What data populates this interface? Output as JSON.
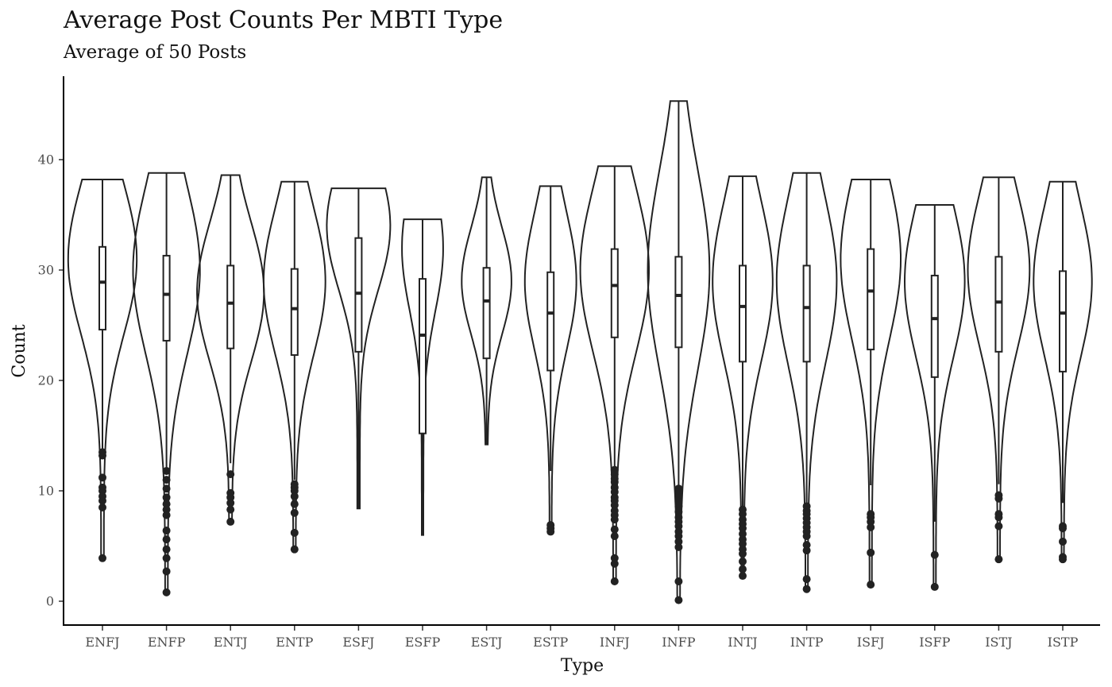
{
  "chart_data": {
    "type": "violin",
    "title": "Average Post Counts Per MBTI Type",
    "subtitle": "Average of 50 Posts",
    "xlabel": "Type",
    "ylabel": "Count",
    "ylim": [
      -2,
      47
    ],
    "y_ticks": [
      0,
      10,
      20,
      30,
      40
    ],
    "grid": false,
    "categories": [
      "ENFJ",
      "ENFP",
      "ENTJ",
      "ENTP",
      "ESFJ",
      "ESFP",
      "ESTJ",
      "ESTP",
      "INFJ",
      "INFP",
      "INTJ",
      "INTP",
      "ISFJ",
      "ISFP",
      "ISTJ",
      "ISTP"
    ],
    "groups": [
      {
        "type": "ENFJ",
        "min": 3.9,
        "max": 38.2,
        "q1": 24.6,
        "median": 28.9,
        "q3": 32.1,
        "whisker_low": 13.3,
        "whisker_high": 38.2,
        "peak": 31,
        "width": 0.8,
        "outliers": [
          13.5,
          13.2,
          11.2,
          10.3,
          10.0,
          9.5,
          9.1,
          8.5,
          3.9
        ]
      },
      {
        "type": "ENFP",
        "min": 0.8,
        "max": 38.8,
        "q1": 23.6,
        "median": 27.8,
        "q3": 31.3,
        "whisker_low": 12.0,
        "whisker_high": 38.8,
        "peak": 30,
        "width": 0.78,
        "outliers": [
          11.8,
          11.0,
          10.2,
          9.4,
          8.8,
          8.3,
          7.8,
          6.4,
          5.6,
          4.7,
          3.9,
          2.7,
          0.8
        ]
      },
      {
        "type": "ENTJ",
        "min": 7.2,
        "max": 38.6,
        "q1": 22.9,
        "median": 27.0,
        "q3": 30.4,
        "whisker_low": 12.5,
        "whisker_high": 38.6,
        "peak": 28,
        "width": 0.78,
        "outliers": [
          11.5,
          9.8,
          9.4,
          8.9,
          8.3,
          7.2
        ]
      },
      {
        "type": "ENTP",
        "min": 4.7,
        "max": 38.0,
        "q1": 22.3,
        "median": 26.5,
        "q3": 30.1,
        "whisker_low": 11.0,
        "whisker_high": 38.0,
        "peak": 29,
        "width": 0.72,
        "outliers": [
          10.6,
          10.3,
          10.0,
          9.5,
          8.8,
          8.0,
          6.2,
          4.7
        ]
      },
      {
        "type": "ESFJ",
        "min": 8.4,
        "max": 37.4,
        "q1": 22.6,
        "median": 27.9,
        "q3": 32.9,
        "whisker_low": 8.4,
        "whisker_high": 37.4,
        "peak": 34,
        "width": 0.74,
        "outliers": []
      },
      {
        "type": "ESFP",
        "min": 6.0,
        "max": 34.6,
        "q1": 15.2,
        "median": 24.1,
        "q3": 29.2,
        "whisker_low": 6.0,
        "whisker_high": 34.6,
        "peak": 32,
        "width": 0.48,
        "outliers": []
      },
      {
        "type": "ESTJ",
        "min": 14.2,
        "max": 38.4,
        "q1": 22.0,
        "median": 27.2,
        "q3": 30.2,
        "whisker_low": 14.2,
        "whisker_high": 38.4,
        "peak": 29,
        "width": 0.58,
        "outliers": []
      },
      {
        "type": "ESTP",
        "min": 6.3,
        "max": 37.6,
        "q1": 20.9,
        "median": 26.1,
        "q3": 29.8,
        "whisker_low": 11.8,
        "whisker_high": 37.6,
        "peak": 29,
        "width": 0.6,
        "outliers": [
          6.9,
          6.6,
          6.3
        ]
      },
      {
        "type": "INFJ",
        "min": 1.8,
        "max": 39.4,
        "q1": 23.9,
        "median": 28.6,
        "q3": 31.9,
        "whisker_low": 12.0,
        "whisker_high": 39.4,
        "peak": 30,
        "width": 0.8,
        "outliers": [
          11.9,
          11.5,
          11.1,
          10.8,
          10.3,
          9.9,
          9.4,
          9.1,
          8.7,
          8.2,
          7.8,
          7.4,
          6.5,
          5.9,
          3.9,
          3.4,
          1.8
        ]
      },
      {
        "type": "INFP",
        "min": 0.1,
        "max": 45.3,
        "q1": 23.0,
        "median": 27.7,
        "q3": 31.2,
        "whisker_low": 10.5,
        "whisker_high": 45.3,
        "peak": 30,
        "width": 0.72,
        "outliers": [
          10.2,
          9.9,
          9.5,
          9.0,
          8.6,
          8.1,
          7.6,
          7.2,
          6.8,
          6.3,
          5.9,
          5.4,
          4.9,
          1.8,
          0.1
        ]
      },
      {
        "type": "INTJ",
        "min": 2.3,
        "max": 38.5,
        "q1": 21.7,
        "median": 26.7,
        "q3": 30.4,
        "whisker_low": 8.6,
        "whisker_high": 38.5,
        "peak": 29,
        "width": 0.7,
        "outliers": [
          8.3,
          7.9,
          7.4,
          7.0,
          6.6,
          6.1,
          5.6,
          5.2,
          4.7,
          4.3,
          3.6,
          2.9,
          2.3
        ]
      },
      {
        "type": "INTP",
        "min": 1.1,
        "max": 38.8,
        "q1": 21.7,
        "median": 26.6,
        "q3": 30.4,
        "whisker_low": 8.9,
        "whisker_high": 38.8,
        "peak": 29,
        "width": 0.7,
        "outliers": [
          8.6,
          8.2,
          7.9,
          7.5,
          7.1,
          6.7,
          6.3,
          5.9,
          5.1,
          4.6,
          2.0,
          1.1
        ]
      },
      {
        "type": "ISFJ",
        "min": 1.5,
        "max": 38.2,
        "q1": 22.8,
        "median": 28.1,
        "q3": 31.9,
        "whisker_low": 10.5,
        "whisker_high": 38.2,
        "peak": 31,
        "width": 0.7,
        "outliers": [
          7.9,
          7.6,
          7.2,
          6.7,
          4.4,
          1.5
        ]
      },
      {
        "type": "ISFP",
        "min": 1.3,
        "max": 35.9,
        "q1": 20.3,
        "median": 25.6,
        "q3": 29.5,
        "whisker_low": 7.2,
        "whisker_high": 35.9,
        "peak": 29,
        "width": 0.7,
        "outliers": [
          4.2,
          1.3
        ]
      },
      {
        "type": "ISTJ",
        "min": 3.8,
        "max": 38.4,
        "q1": 22.6,
        "median": 27.1,
        "q3": 31.2,
        "whisker_low": 10.6,
        "whisker_high": 38.4,
        "peak": 30,
        "width": 0.72,
        "outliers": [
          9.6,
          9.3,
          7.9,
          7.6,
          6.8,
          3.8
        ]
      },
      {
        "type": "ISTP",
        "min": 3.8,
        "max": 38.0,
        "q1": 20.8,
        "median": 26.1,
        "q3": 29.9,
        "whisker_low": 8.9,
        "whisker_high": 38.0,
        "peak": 29,
        "width": 0.68,
        "outliers": [
          6.8,
          6.6,
          5.4,
          4.0,
          3.8
        ]
      }
    ]
  }
}
